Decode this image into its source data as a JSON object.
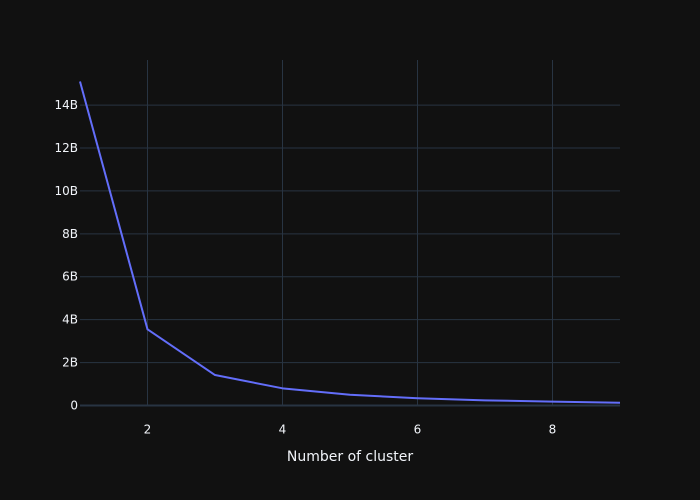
{
  "chart_data": {
    "type": "line",
    "title": "",
    "xlabel": "Number of cluster",
    "ylabel": "",
    "xlim": [
      1,
      9
    ],
    "ylim": [
      -0.0,
      16.1
    ],
    "grid": true,
    "x_ticks": [
      2,
      4,
      6,
      8
    ],
    "x_tick_labels": [
      "2",
      "4",
      "6",
      "8"
    ],
    "y_ticks": [
      0,
      2,
      4,
      6,
      8,
      10,
      12,
      14
    ],
    "y_tick_labels": [
      "0",
      "2B",
      "4B",
      "6B",
      "8B",
      "10B",
      "12B",
      "14B"
    ],
    "series": [
      {
        "x": [
          1,
          2,
          3,
          4,
          5,
          6,
          7,
          8,
          9
        ],
        "y": [
          15.1,
          3.55,
          1.42,
          0.8,
          0.5,
          0.34,
          0.24,
          0.18,
          0.13
        ]
      }
    ],
    "colors": {
      "background": "#111111",
      "grid": "#283442",
      "zeroline": "#283442",
      "line": "#636efa",
      "text": "#f2f5fa"
    }
  }
}
